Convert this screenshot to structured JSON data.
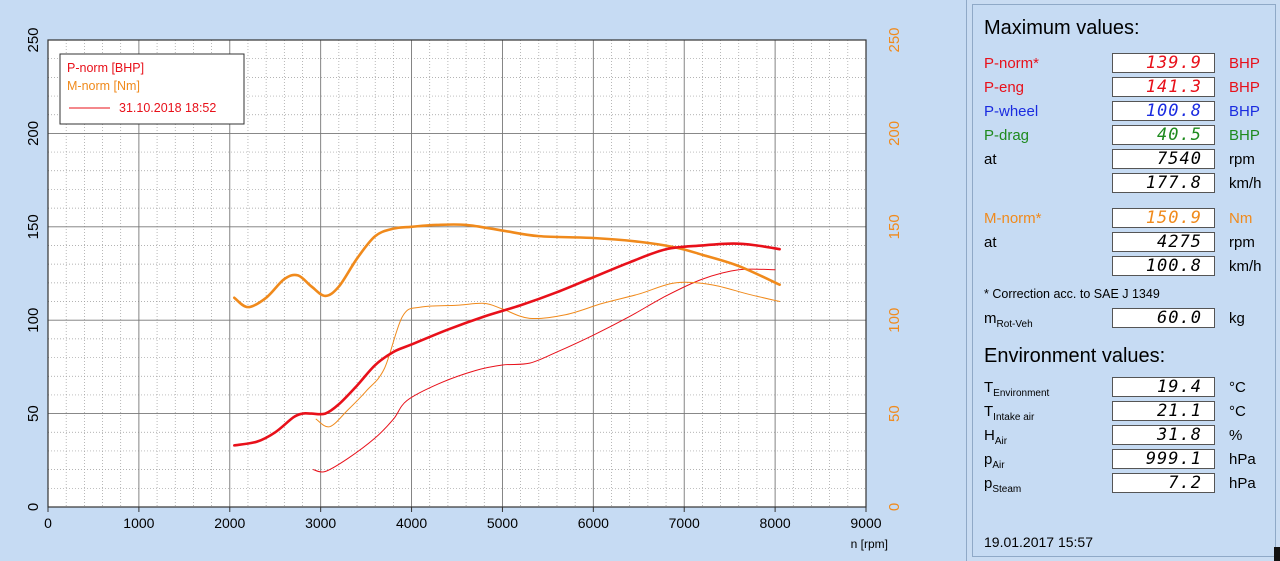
{
  "chart_data": {
    "type": "line",
    "xlabel": "n [rpm]",
    "xlim": [
      0,
      9000
    ],
    "x_ticks": [
      "0",
      "1000",
      "2000",
      "3000",
      "4000",
      "5000",
      "6000",
      "7000",
      "8000",
      "9000"
    ],
    "ylim_left": [
      0,
      250
    ],
    "y_ticks_left": [
      "0",
      "50",
      "100",
      "150",
      "200",
      "250"
    ],
    "ylim_right": [
      0,
      250
    ],
    "y_ticks_right": [
      "0",
      "50",
      "100",
      "150",
      "200",
      "250"
    ],
    "grid": true,
    "legend_position": "top-left",
    "legend": [
      {
        "label": "P-norm [BHP]",
        "color": "#e8101a"
      },
      {
        "label": "M-norm [Nm]",
        "color": "#f08a1c"
      },
      {
        "label": "31.10.2018 18:52",
        "color": "#e8101a",
        "line": true
      }
    ],
    "series": [
      {
        "name": "P-norm [BHP]",
        "color": "#e8101a",
        "width": 2.6,
        "axis": "left",
        "x": [
          2050,
          2300,
          2500,
          2700,
          2800,
          2900,
          3050,
          3200,
          3400,
          3600,
          3800,
          4000,
          4400,
          4800,
          5200,
          5600,
          6000,
          6400,
          6800,
          7200,
          7540,
          7800,
          8050
        ],
        "y": [
          33,
          35,
          40,
          48,
          50,
          50,
          50,
          55,
          65,
          76,
          83,
          87,
          95,
          102,
          108,
          115,
          123,
          131,
          138,
          140,
          141,
          140,
          138
        ]
      },
      {
        "name": "M-norm [Nm]",
        "color": "#f08a1c",
        "width": 2.6,
        "axis": "right",
        "x": [
          2050,
          2200,
          2400,
          2600,
          2750,
          2900,
          3050,
          3200,
          3400,
          3600,
          3800,
          4000,
          4275,
          4600,
          5000,
          5400,
          6000,
          6500,
          6900,
          7200,
          7600,
          8050
        ],
        "y": [
          112,
          107,
          112,
          122,
          124,
          118,
          113,
          118,
          133,
          145,
          149,
          150,
          151,
          151,
          148,
          145,
          144,
          142,
          139,
          135,
          129,
          119
        ]
      },
      {
        "color": "#e8101a",
        "width": 1.0,
        "axis": "left",
        "x": [
          2920,
          3050,
          3300,
          3600,
          3800,
          3950,
          4300,
          4700,
          5000,
          5300,
          5600,
          6000,
          6400,
          6800,
          7200,
          7600,
          8000
        ],
        "y": [
          20,
          19,
          26,
          37,
          47,
          57,
          66,
          73,
          76,
          77,
          83,
          92,
          102,
          113,
          122,
          127,
          127
        ]
      },
      {
        "color": "#f08a1c",
        "width": 1.0,
        "axis": "right",
        "x": [
          2950,
          3100,
          3300,
          3500,
          3700,
          3900,
          4100,
          4500,
          4800,
          5000,
          5300,
          5700,
          6100,
          6500,
          6900,
          7300,
          7700,
          8050
        ],
        "y": [
          47,
          43,
          52,
          62,
          74,
          102,
          107,
          108,
          109,
          106,
          101,
          103,
          109,
          114,
          120,
          119,
          114,
          110
        ]
      }
    ]
  },
  "side_panel": {
    "max_heading": "Maximum values:",
    "rows": [
      {
        "label": "P-norm*",
        "value": "139.9",
        "unit": "BHP",
        "color": "red"
      },
      {
        "label": "P-eng",
        "value": "141.3",
        "unit": "BHP",
        "color": "red"
      },
      {
        "label": "P-wheel",
        "value": "100.8",
        "unit": "BHP",
        "color": "blue"
      },
      {
        "label": "P-drag",
        "value": "40.5",
        "unit": "BHP",
        "color": "green"
      },
      {
        "label": "at",
        "value": "7540",
        "unit": "rpm",
        "color": "black"
      },
      {
        "label": "",
        "value": "177.8",
        "unit": "km/h",
        "color": "black"
      },
      {
        "label": "M-norm*",
        "value": "150.9",
        "unit": "Nm",
        "color": "orange"
      },
      {
        "label": "at",
        "value": "4275",
        "unit": "rpm",
        "color": "black"
      },
      {
        "label": "",
        "value": "100.8",
        "unit": "km/h",
        "color": "black"
      }
    ],
    "correction_note": "* Correction acc. to SAE J 1349",
    "mass": {
      "label": "m",
      "sub": "Rot-Veh",
      "value": "60.0",
      "unit": "kg"
    },
    "env_heading": "Environment values:",
    "env_rows": [
      {
        "label": "T",
        "sub": "Environment",
        "value": "19.4",
        "unit": "°C"
      },
      {
        "label": "T",
        "sub": "Intake air",
        "value": "21.1",
        "unit": "°C"
      },
      {
        "label": "H",
        "sub": "Air",
        "value": "31.8",
        "unit": "%"
      },
      {
        "label": "p",
        "sub": "Air",
        "value": "999.1",
        "unit": "hPa"
      },
      {
        "label": "p",
        "sub": "Steam",
        "value": "7.2",
        "unit": "hPa"
      }
    ],
    "footer_date": "19.01.2017  15:57"
  }
}
